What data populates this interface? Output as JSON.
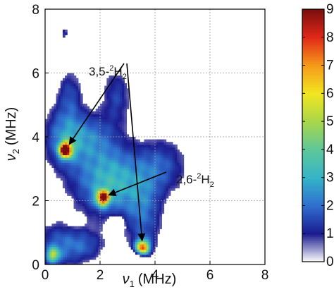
{
  "chart_data": {
    "type": "heatmap",
    "title": "",
    "xlabel": {
      "sym": "ν",
      "sub": "1",
      "unit": "(MHz)"
    },
    "ylabel": {
      "sym": "ν",
      "sub": "2",
      "unit": "(MHz)"
    },
    "xlim": [
      0,
      8
    ],
    "ylim": [
      0,
      8
    ],
    "xticks": [
      "0",
      "2",
      "4",
      "6",
      "8"
    ],
    "yticks": [
      "0",
      "2",
      "4",
      "6",
      "8"
    ],
    "grid": true,
    "colorbar": {
      "min": 0,
      "max": 9,
      "ticks": [
        "0",
        "1",
        "2",
        "3",
        "4",
        "5",
        "6",
        "7",
        "8",
        "9"
      ]
    },
    "colormap": [
      "#ffffff",
      "#1b1b8f",
      "#2f6fcf",
      "#35b4c8",
      "#5ec79a",
      "#a8d64a",
      "#f2e620",
      "#f59a1a",
      "#e02818",
      "#7a0f0f"
    ],
    "peaks": [
      {
        "x": 0.75,
        "y": 3.6,
        "intensity": 9
      },
      {
        "x": 2.1,
        "y": 2.1,
        "intensity": 7.8
      },
      {
        "x": 3.55,
        "y": 0.55,
        "intensity": 7
      },
      {
        "x": 0.3,
        "y": 0.3,
        "intensity": 4
      }
    ],
    "annotations": [
      {
        "base": "3,5-",
        "sup": "2",
        "elem": "H",
        "sub": "2",
        "points_to": [
          [
            0.75,
            3.6
          ],
          [
            3.55,
            0.55
          ]
        ]
      },
      {
        "base": "2,6-",
        "sup": "2",
        "elem": "H",
        "sub": "2",
        "points_to": [
          [
            2.1,
            2.1
          ]
        ]
      }
    ]
  }
}
